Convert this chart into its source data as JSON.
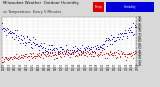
{
  "title": "Milwaukee Weather  Outdoor Humidity",
  "subtitle": "vs Temperature  Every 5 Minutes",
  "bg_color": "#d8d8d8",
  "plot_bg_color": "#ffffff",
  "grid_color": "#bbbbbb",
  "blue_color": "#0000dd",
  "red_color": "#dd0000",
  "legend_red_label": "Temp",
  "legend_blue_label": "Humidity",
  "y_min": 20,
  "y_max": 95,
  "figsize": [
    1.6,
    0.87
  ],
  "dpi": 100
}
